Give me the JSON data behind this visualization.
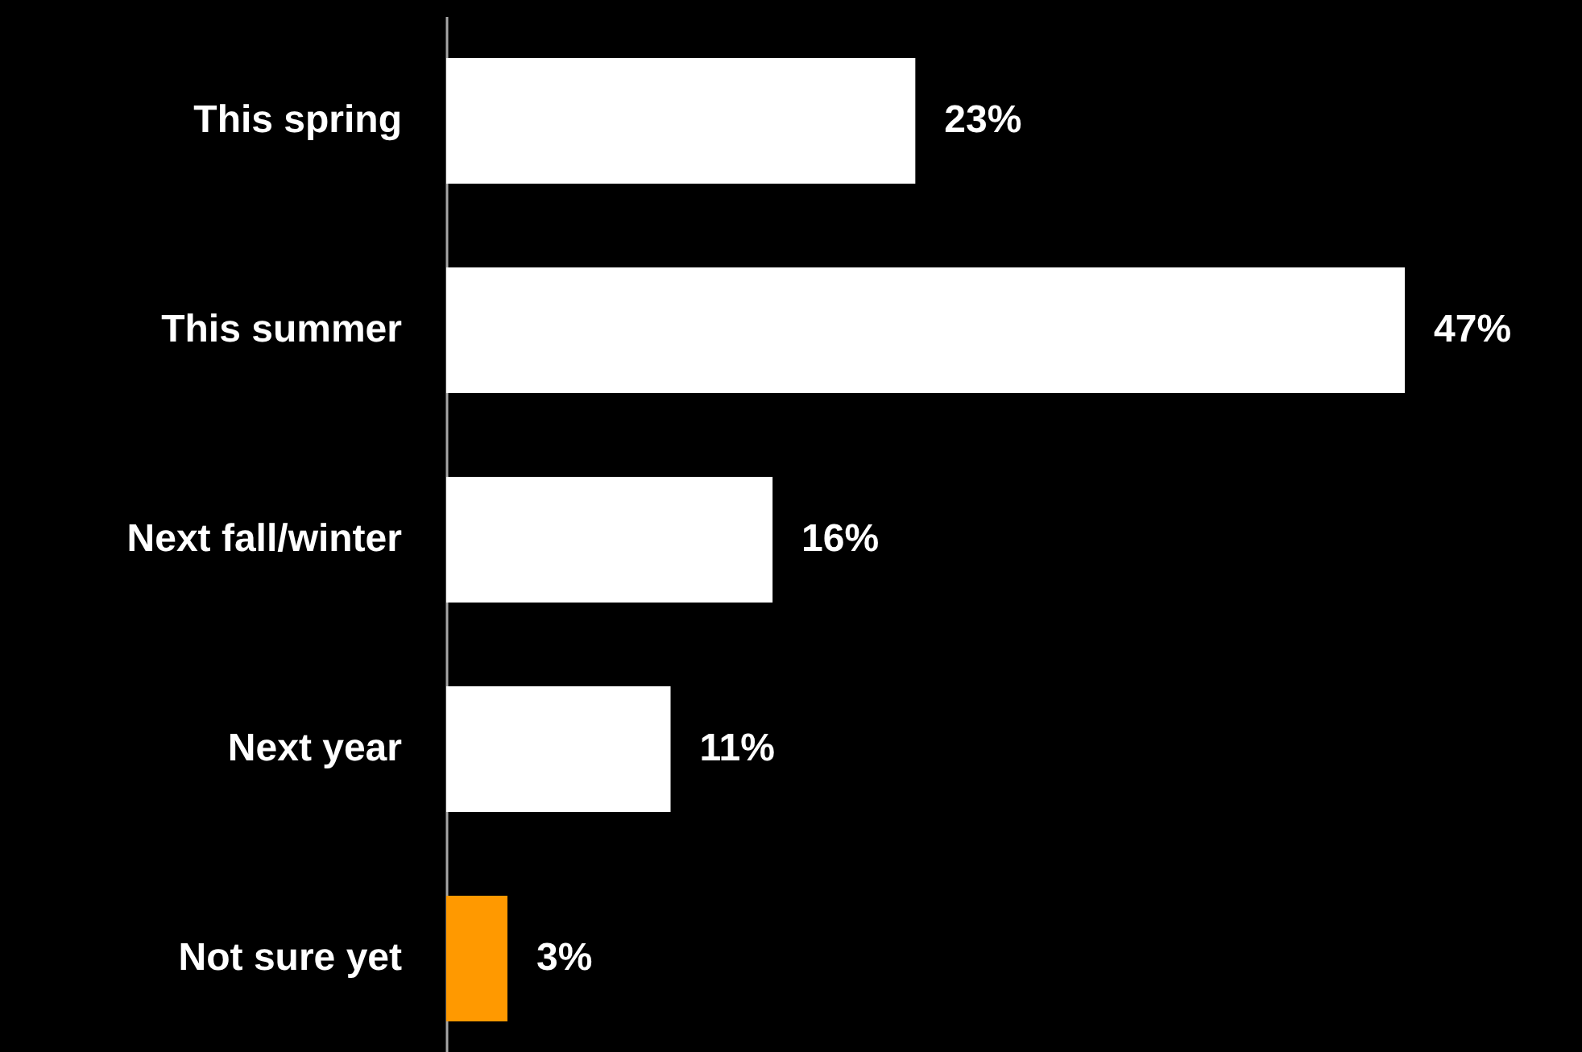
{
  "chart_data": {
    "type": "bar",
    "orientation": "horizontal",
    "categories": [
      "This spring",
      "This summer",
      "Next fall/winter",
      "Next year",
      "Not sure yet"
    ],
    "values": [
      23,
      47,
      16,
      11,
      3
    ],
    "colors": [
      "#ffffff",
      "#ffffff",
      "#ffffff",
      "#ffffff",
      "#ff9900"
    ],
    "value_labels": [
      "23%",
      "47%",
      "16%",
      "11%",
      "3%"
    ]
  }
}
